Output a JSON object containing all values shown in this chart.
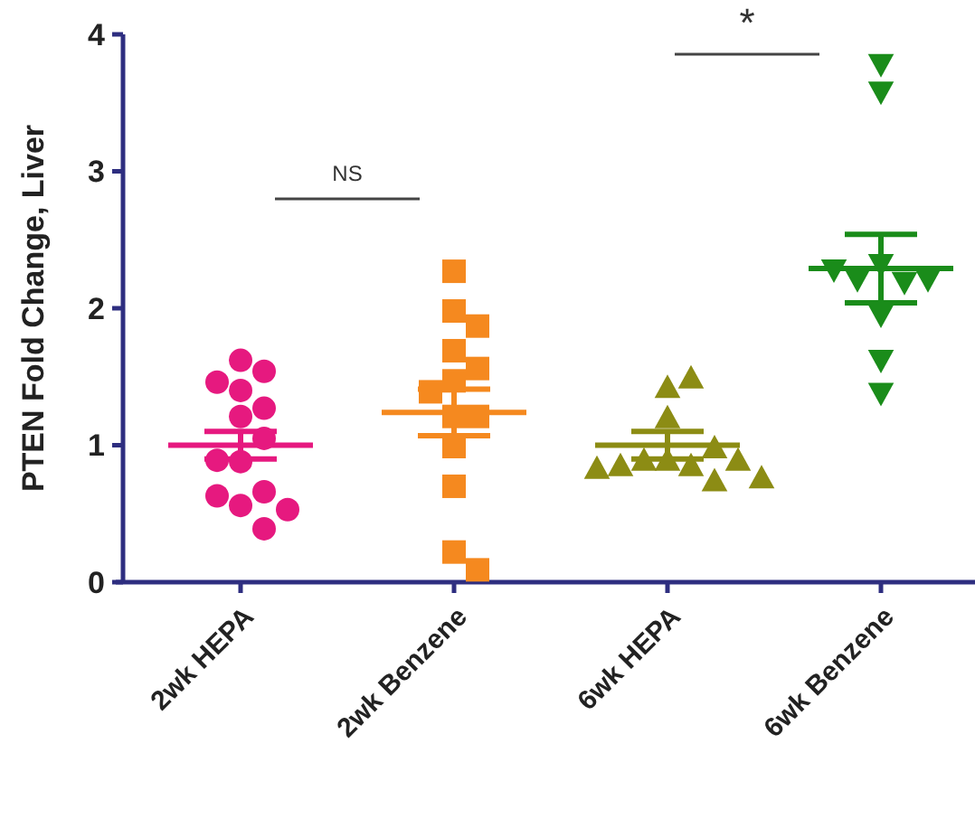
{
  "chart_data": {
    "type": "scatter",
    "ylabel": "PTEN Fold Change, Liver",
    "categories": [
      "2wk HEPA",
      "2wk Benzene",
      "6wk HEPA",
      "6wk Benzene"
    ],
    "ylim": [
      0,
      4
    ],
    "yticks": [
      0,
      1,
      2,
      3,
      4
    ],
    "grid": false,
    "series": [
      {
        "color": "#e6197f",
        "marker": "circle",
        "x": [
          "2wk HEPA",
          "2wk HEPA",
          "2wk HEPA",
          "2wk HEPA",
          "2wk HEPA",
          "2wk HEPA",
          "2wk HEPA",
          "2wk HEPA",
          "2wk HEPA",
          "2wk HEPA",
          "2wk HEPA",
          "2wk HEPA",
          "2wk HEPA",
          "2wk HEPA"
        ],
        "values": [
          1.62,
          1.54,
          1.46,
          1.4,
          1.27,
          1.21,
          1.05,
          0.88,
          0.89,
          0.56,
          0.66,
          0.63,
          0.53,
          0.39
        ]
      },
      {
        "color": "#f5891f",
        "marker": "square",
        "x": [
          "2wk Benzene",
          "2wk Benzene",
          "2wk Benzene",
          "2wk Benzene",
          "2wk Benzene",
          "2wk Benzene",
          "2wk Benzene",
          "2wk Benzene",
          "2wk Benzene",
          "2wk Benzene",
          "2wk Benzene",
          "2wk Benzene",
          "2wk Benzene"
        ],
        "values": [
          2.27,
          1.98,
          1.87,
          1.69,
          1.56,
          1.47,
          1.39,
          1.21,
          1.21,
          0.99,
          0.7,
          0.22,
          0.09
        ]
      },
      {
        "color": "#8c8c14",
        "marker": "triangle",
        "x": [
          "6wk HEPA",
          "6wk HEPA",
          "6wk HEPA",
          "6wk HEPA",
          "6wk HEPA",
          "6wk HEPA",
          "6wk HEPA",
          "6wk HEPA",
          "6wk HEPA",
          "6wk HEPA",
          "6wk HEPA",
          "6wk HEPA"
        ],
        "values": [
          1.43,
          1.5,
          1.21,
          0.9,
          0.86,
          0.9,
          0.75,
          0.86,
          0.9,
          0.84,
          0.99,
          0.77
        ]
      },
      {
        "color": "#1a8c1a",
        "marker": "triangle-down",
        "x": [
          "6wk Benzene",
          "6wk Benzene",
          "6wk Benzene",
          "6wk Benzene",
          "6wk Benzene",
          "6wk Benzene",
          "6wk Benzene",
          "6wk Benzene",
          "6wk Benzene",
          "6wk Benzene"
        ],
        "values": [
          3.77,
          3.57,
          2.31,
          2.18,
          2.2,
          2.2,
          2.27,
          1.94,
          1.61,
          1.37
        ]
      },
      {
        "type": "box",
        "colors": [
          "#e6197f",
          "#f5891f",
          "#8c8c14",
          "#1a8c1a"
        ],
        "boxes": [
          {
            "low": 0.9,
            "q1": 1.0,
            "median": 1.0,
            "q3": 1.0,
            "high": 1.1
          },
          {
            "low": 1.07,
            "q1": 1.24,
            "median": 1.24,
            "q3": 1.24,
            "high": 1.41
          },
          {
            "low": 0.9,
            "q1": 1.0,
            "median": 1.0,
            "q3": 1.0,
            "high": 1.1
          },
          {
            "low": 2.04,
            "q1": 2.29,
            "median": 2.29,
            "q3": 2.29,
            "high": 2.54
          }
        ]
      }
    ],
    "annotations": [
      "NS",
      "*"
    ]
  }
}
